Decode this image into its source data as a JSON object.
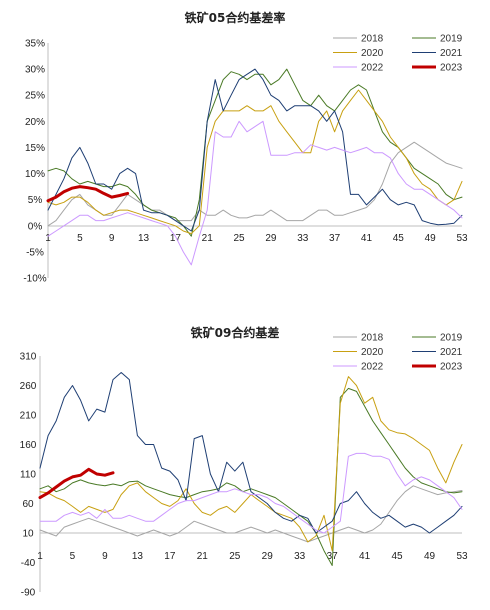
{
  "chart_data": [
    {
      "type": "line",
      "title": "铁矿05合约基差率",
      "xlabel": "",
      "ylabel": "",
      "x_ticks": [
        "1",
        "5",
        "9",
        "13",
        "17",
        "21",
        "25",
        "29",
        "33",
        "37",
        "41",
        "45",
        "49",
        "53"
      ],
      "y_ticks": [
        "35%",
        "30%",
        "25%",
        "20%",
        "15%",
        "10%",
        "5%",
        "0%",
        "-5%",
        "-10%"
      ],
      "ylim": [
        -10,
        35
      ],
      "xlim": [
        1,
        53
      ],
      "grid": false,
      "legend": "top-right",
      "series": [
        {
          "name": "2018",
          "color": "#a6a6a6",
          "width": 1,
          "values": [
            0,
            1,
            3,
            5,
            6,
            4,
            3,
            2,
            2,
            4,
            6,
            5,
            4,
            3,
            3,
            2,
            1,
            1,
            1,
            3,
            2,
            2,
            3,
            2,
            1.5,
            1.5,
            2,
            2,
            3,
            2,
            1,
            1,
            1,
            2,
            3,
            3,
            2,
            2,
            2.5,
            3,
            3.5,
            5,
            8,
            12,
            14,
            15,
            16,
            15,
            14,
            13,
            12,
            11.5,
            11
          ]
        },
        {
          "name": "2019",
          "color": "#4a7a26",
          "width": 1,
          "values": [
            10.5,
            11,
            10.5,
            9,
            8,
            8.5,
            8,
            7.5,
            7.5,
            8,
            7.5,
            6,
            4,
            3,
            2.5,
            2,
            1.5,
            0,
            -2,
            5,
            20,
            24,
            28,
            29.5,
            29,
            28,
            29,
            29,
            27,
            28,
            30,
            27,
            24,
            23,
            25,
            23,
            22,
            24,
            26,
            27,
            26,
            22,
            18,
            16,
            15,
            13,
            11,
            10,
            9,
            8,
            6,
            5,
            5.5
          ]
        },
        {
          "name": "2020",
          "color": "#c8a012",
          "width": 1,
          "values": [
            4.5,
            4,
            4.5,
            5.5,
            5.5,
            4.5,
            3,
            2,
            2.5,
            3,
            3,
            2.5,
            2,
            1.5,
            1,
            0.5,
            0,
            -1,
            -1.5,
            0,
            15,
            20,
            22,
            22,
            22,
            23,
            22,
            22,
            23,
            20,
            18,
            16,
            14,
            14,
            20,
            22,
            18,
            22,
            24,
            26,
            24,
            22,
            20,
            17,
            15,
            13,
            10,
            8,
            7,
            5,
            4,
            5,
            8.5
          ]
        },
        {
          "name": "2021",
          "color": "#1f3f74",
          "width": 1,
          "values": [
            3,
            6,
            9,
            13,
            15,
            12,
            8,
            8,
            7,
            10,
            11,
            10,
            3,
            2.5,
            2.5,
            2,
            1,
            0,
            -1,
            3,
            20,
            28,
            22,
            25,
            28,
            29,
            30,
            28,
            25,
            24,
            22,
            23,
            23,
            23,
            22,
            20,
            22,
            18,
            6,
            6,
            4,
            5.5,
            7,
            5,
            4,
            4.5,
            4,
            1,
            0.5,
            0.2,
            0.3,
            0.5,
            2
          ]
        },
        {
          "name": "2022",
          "color": "#cc99ff",
          "width": 1,
          "values": [
            -2,
            -1,
            0,
            1,
            2,
            2,
            1,
            1,
            1.5,
            2,
            2.5,
            2,
            1.5,
            1,
            0.5,
            0,
            -2,
            -5,
            -7.5,
            -2,
            3,
            18,
            17,
            17,
            20,
            18,
            19,
            20,
            13.5,
            13.5,
            13.5,
            14,
            14,
            15.5,
            15,
            14.5,
            15,
            14.5,
            14,
            14.5,
            15,
            14,
            14,
            13,
            10,
            8,
            7,
            7,
            6,
            5,
            4,
            3,
            1.5
          ]
        },
        {
          "name": "2023",
          "color": "#c00000",
          "width": 3,
          "values": [
            4.8,
            5.5,
            6.5,
            7.2,
            7.5,
            7.3,
            7,
            6.2,
            5.5,
            5.8,
            6.2
          ]
        }
      ]
    },
    {
      "type": "line",
      "title": "铁矿09合约基差",
      "xlabel": "",
      "ylabel": "",
      "x_ticks": [
        "1",
        "5",
        "9",
        "13",
        "17",
        "21",
        "25",
        "29",
        "33",
        "37",
        "41",
        "45",
        "49",
        "53"
      ],
      "y_ticks": [
        "310",
        "260",
        "210",
        "160",
        "110",
        "60",
        "10",
        "-40",
        "-90"
      ],
      "ylim": [
        -90,
        310
      ],
      "xlim": [
        1,
        53
      ],
      "grid": false,
      "legend": "top-right",
      "series": [
        {
          "name": "2018",
          "color": "#a6a6a6",
          "width": 1,
          "values": [
            15,
            10,
            5,
            20,
            25,
            30,
            35,
            30,
            25,
            20,
            15,
            10,
            5,
            10,
            15,
            10,
            5,
            10,
            20,
            30,
            25,
            20,
            15,
            10,
            10,
            15,
            20,
            15,
            10,
            15,
            10,
            5,
            0,
            -5,
            0,
            5,
            10,
            15,
            20,
            15,
            10,
            15,
            25,
            45,
            65,
            80,
            90,
            85,
            80,
            75,
            78,
            80,
            82
          ]
        },
        {
          "name": "2019",
          "color": "#4a7a26",
          "width": 1,
          "values": [
            85,
            90,
            80,
            85,
            95,
            100,
            95,
            92,
            90,
            93,
            90,
            97,
            98,
            90,
            85,
            80,
            75,
            72,
            70,
            75,
            80,
            82,
            85,
            95,
            90,
            80,
            85,
            80,
            75,
            70,
            60,
            50,
            40,
            30,
            10,
            -20,
            -45,
            240,
            255,
            250,
            225,
            200,
            180,
            160,
            140,
            120,
            105,
            95,
            90,
            85,
            80,
            78,
            80
          ]
        },
        {
          "name": "2020",
          "color": "#c8a012",
          "width": 1,
          "values": [
            80,
            78,
            70,
            65,
            55,
            45,
            55,
            50,
            45,
            50,
            75,
            90,
            95,
            80,
            70,
            60,
            55,
            65,
            85,
            60,
            45,
            40,
            50,
            55,
            45,
            60,
            75,
            65,
            55,
            45,
            40,
            35,
            20,
            -5,
            5,
            40,
            -20,
            230,
            275,
            260,
            230,
            240,
            200,
            185,
            180,
            178,
            170,
            160,
            150,
            120,
            95,
            130,
            160
          ]
        },
        {
          "name": "2021",
          "color": "#1f3f74",
          "width": 1,
          "values": [
            120,
            175,
            200,
            240,
            260,
            235,
            200,
            220,
            215,
            270,
            282,
            270,
            175,
            160,
            160,
            120,
            115,
            100,
            65,
            170,
            175,
            110,
            80,
            130,
            115,
            130,
            80,
            70,
            60,
            45,
            35,
            30,
            40,
            35,
            10,
            20,
            30,
            60,
            65,
            80,
            60,
            45,
            35,
            40,
            30,
            20,
            25,
            20,
            10,
            20,
            30,
            40,
            55
          ]
        },
        {
          "name": "2022",
          "color": "#cc99ff",
          "width": 1,
          "values": [
            30,
            30,
            30,
            40,
            45,
            40,
            45,
            35,
            50,
            35,
            35,
            40,
            35,
            30,
            30,
            40,
            50,
            60,
            65,
            65,
            70,
            75,
            80,
            80,
            85,
            80,
            75,
            75,
            70,
            60,
            55,
            45,
            35,
            25,
            15,
            10,
            20,
            30,
            140,
            145,
            145,
            140,
            140,
            135,
            110,
            90,
            100,
            105,
            100,
            90,
            80,
            70,
            50
          ]
        },
        {
          "name": "2023",
          "color": "#c00000",
          "width": 3,
          "values": [
            70,
            78,
            88,
            98,
            105,
            108,
            118,
            110,
            108,
            112
          ]
        }
      ]
    }
  ]
}
